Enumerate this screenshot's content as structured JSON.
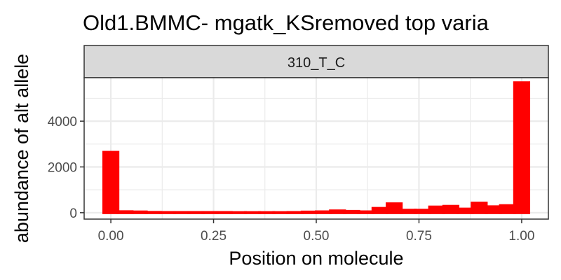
{
  "chart_data": {
    "type": "bar",
    "title": "Old1.BMMC- mgatk_KSremoved top varia",
    "facet_label": "310_T_C",
    "xlabel": "Position on molecule",
    "ylabel": "abundance of alt allele",
    "xlim": [
      -0.065,
      1.065
    ],
    "ylim": [
      -280,
      5900
    ],
    "bin_width": 0.0345,
    "x_ticks": [
      0.0,
      0.25,
      0.5,
      0.75,
      1.0
    ],
    "x_tick_labels": [
      "0.00",
      "0.25",
      "0.50",
      "0.75",
      "1.00"
    ],
    "y_ticks": [
      0,
      2000,
      4000
    ],
    "y_tick_labels": [
      "0",
      "2000",
      "4000"
    ],
    "series": [
      {
        "color": "#ff0000",
        "x": [
          0.0,
          0.0345,
          0.069,
          0.1034,
          0.1379,
          0.1724,
          0.2069,
          0.2414,
          0.2759,
          0.3103,
          0.3448,
          0.3793,
          0.4138,
          0.4483,
          0.4828,
          0.5172,
          0.5517,
          0.5862,
          0.6207,
          0.6552,
          0.6897,
          0.7241,
          0.7586,
          0.7931,
          0.8276,
          0.8621,
          0.8966,
          0.931,
          0.9655,
          1.0
        ],
        "values": [
          2640,
          45,
          35,
          15,
          10,
          10,
          10,
          10,
          10,
          5,
          5,
          5,
          5,
          10,
          30,
          40,
          80,
          60,
          40,
          190,
          390,
          110,
          110,
          250,
          280,
          160,
          420,
          260,
          310,
          5680
        ]
      }
    ]
  }
}
